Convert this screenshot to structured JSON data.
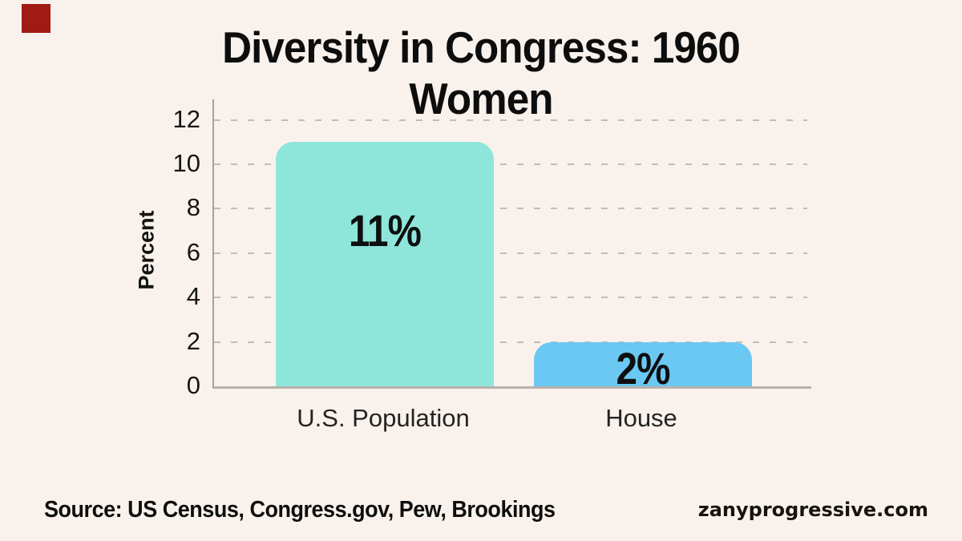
{
  "page": {
    "background": "#f9f2ec",
    "logo_square_color": "#a01b14"
  },
  "title": {
    "line1": "Diversity in Congress: 1960",
    "line2": "Women"
  },
  "footer": {
    "source": "Source: US Census, Congress.gov, Pew, Brookings",
    "website": "zanyprogressive.com"
  },
  "chart_data": {
    "type": "bar",
    "title": "Diversity in Congress: 1960 Women",
    "categories": [
      "U.S. Population",
      "House"
    ],
    "values": [
      11,
      2
    ],
    "value_labels": [
      "11%",
      "2%"
    ],
    "bar_colors": [
      "#8ee6db",
      "#6ac8f3"
    ],
    "xlabel": "",
    "ylabel": "Percent",
    "ylim": [
      0,
      12
    ],
    "yticks": [
      0,
      2,
      4,
      6,
      8,
      10,
      12
    ],
    "grid": "horizontal dashed gridlines at even ticks, drawn behind bars",
    "gridline_color": "#c2bcb5",
    "axis_line_color": "#a6a19b",
    "legend": "none",
    "value_label_position": "inside bar, centered"
  }
}
